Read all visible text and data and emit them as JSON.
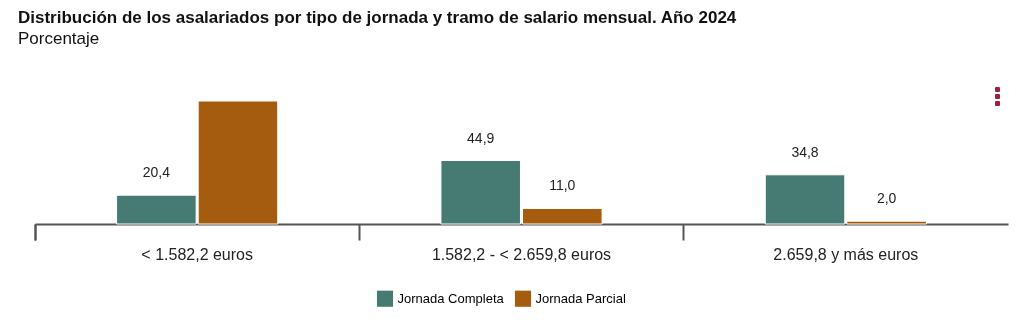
{
  "chart_data": {
    "type": "bar",
    "title": "Distribución de los asalariados por tipo de jornada y tramo de salario mensual. Año 2024",
    "subtitle": "Porcentaje",
    "categories": [
      "< 1.582,2 euros",
      "1.582,2 - < 2.659,8 euros",
      "2.659,8 y más euros"
    ],
    "series": [
      {
        "name": "Jornada Completa",
        "color": "#467b74",
        "values": [
          20.4,
          44.9,
          34.8
        ],
        "value_labels": [
          "20,4",
          "44,9",
          "34,8"
        ]
      },
      {
        "name": "Jornada Parcial",
        "color": "#a65c0e",
        "values": [
          87.0,
          11.0,
          2.0
        ],
        "value_labels": [
          null,
          "11,0",
          "2,0"
        ]
      }
    ],
    "legend": "bottom"
  }
}
